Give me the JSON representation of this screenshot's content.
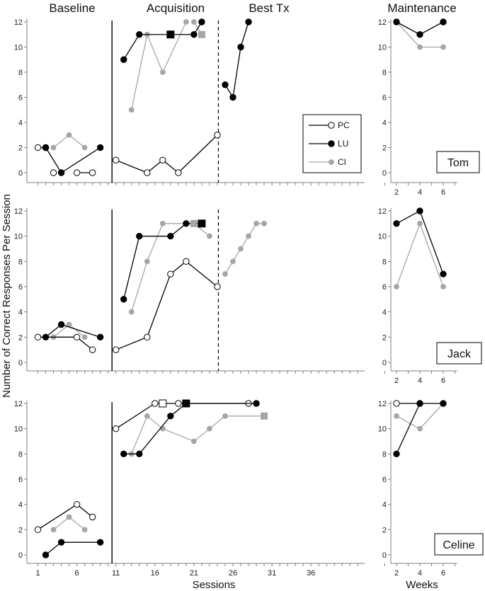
{
  "chart_data": {
    "type": "line",
    "phases": [
      "Baseline",
      "Acquisition",
      "Best Tx",
      "Maintenance"
    ],
    "xlabel": "Sessions",
    "maint_xlabel": "Weeks",
    "ylabel": "Number of Correct Responses Per Session",
    "session_ticks": [
      1,
      6,
      11,
      16,
      21,
      26,
      31,
      36
    ],
    "maint_ticks": [
      2,
      4,
      6
    ],
    "y_ticks": [
      0,
      2,
      4,
      6,
      8,
      10,
      12
    ],
    "ylim": [
      0,
      12
    ],
    "legend": [
      {
        "key": "PC",
        "label": "PC"
      },
      {
        "key": "LU",
        "label": "LU"
      },
      {
        "key": "CI",
        "label": "CI"
      }
    ],
    "colors": {
      "PC": "#ffffff",
      "LU": "#000000",
      "CI": "#a6a6a6"
    },
    "panels": [
      {
        "participant": "Tom",
        "baseline_end": 10,
        "besttx_start": 24.5,
        "series": [
          {
            "key": "PC",
            "segments": [
              [
                [
                  1,
                  2
                ],
                [
                  2,
                  2
                ]
              ],
              [
                [
                  3,
                  0
                ]
              ],
              [
                [
                  6,
                  0
                ],
                [
                  8,
                  0
                ]
              ],
              [
                [
                  11,
                  1
                ],
                [
                  15,
                  0
                ],
                [
                  17,
                  1
                ],
                [
                  19,
                  0
                ],
                [
                  24,
                  3
                ]
              ]
            ]
          },
          {
            "key": "LU",
            "segments": [
              [
                [
                  2,
                  2
                ],
                [
                  4,
                  0
                ],
                [
                  9,
                  2
                ]
              ],
              [
                [
                  12,
                  9
                ],
                [
                  14,
                  11
                ],
                [
                  18,
                  11
                ],
                [
                  21,
                  11
                ],
                [
                  22,
                  12
                ]
              ],
              [
                [
                  25,
                  7
                ],
                [
                  26,
                  6
                ],
                [
                  27,
                  10
                ],
                [
                  28,
                  12
                ]
              ]
            ]
          },
          {
            "key": "CI",
            "segments": [
              [
                [
                  3,
                  2
                ],
                [
                  5,
                  3
                ],
                [
                  7,
                  2
                ]
              ],
              [
                [
                  13,
                  5
                ],
                [
                  15,
                  11
                ],
                [
                  17,
                  8
                ],
                [
                  20,
                  12
                ]
              ],
              [
                [
                  21,
                  12
                ],
                [
                  22,
                  11
                ]
              ]
            ]
          }
        ],
        "squares": [
          {
            "key": "LU",
            "x": 18,
            "y": 11
          },
          {
            "key": "CI",
            "x": 22,
            "y": 11
          }
        ],
        "maintenance": [
          {
            "key": "CI",
            "points": [
              [
                2,
                12
              ],
              [
                4,
                10
              ],
              [
                6,
                10
              ]
            ]
          },
          {
            "key": "LU",
            "points": [
              [
                2,
                12
              ],
              [
                4,
                11
              ],
              [
                6,
                12
              ]
            ]
          }
        ]
      },
      {
        "participant": "Jack",
        "baseline_end": 10,
        "besttx_start": 24.5,
        "series": [
          {
            "key": "PC",
            "segments": [
              [
                [
                  1,
                  2
                ],
                [
                  6,
                  2
                ],
                [
                  8,
                  1
                ]
              ],
              [
                [
                  11,
                  1
                ],
                [
                  15,
                  2
                ],
                [
                  18,
                  7
                ],
                [
                  20,
                  8
                ],
                [
                  24,
                  6
                ]
              ]
            ]
          },
          {
            "key": "LU",
            "segments": [
              [
                [
                  2,
                  2
                ],
                [
                  4,
                  3
                ],
                [
                  9,
                  2
                ]
              ],
              [
                [
                  12,
                  5
                ],
                [
                  14,
                  10
                ],
                [
                  18,
                  10
                ],
                [
                  20,
                  11
                ],
                [
                  22,
                  11
                ]
              ]
            ]
          },
          {
            "key": "CI",
            "segments": [
              [
                [
                  3,
                  2
                ],
                [
                  5,
                  3
                ],
                [
                  7,
                  2
                ]
              ],
              [
                [
                  13,
                  4
                ],
                [
                  15,
                  8
                ],
                [
                  17,
                  11
                ],
                [
                  21,
                  11
                ],
                [
                  23,
                  10
                ]
              ],
              [
                [
                  25,
                  7
                ],
                [
                  26,
                  8
                ],
                [
                  27,
                  9
                ],
                [
                  28,
                  10
                ],
                [
                  29,
                  11
                ],
                [
                  30,
                  11
                ]
              ]
            ]
          }
        ],
        "squares": [
          {
            "key": "CI",
            "x": 21,
            "y": 11
          },
          {
            "key": "LU",
            "x": 22,
            "y": 11
          }
        ],
        "maintenance": [
          {
            "key": "CI",
            "points": [
              [
                2,
                6
              ],
              [
                4,
                11
              ],
              [
                6,
                6
              ]
            ]
          },
          {
            "key": "LU",
            "points": [
              [
                2,
                11
              ],
              [
                4,
                12
              ],
              [
                6,
                7
              ]
            ]
          }
        ]
      },
      {
        "participant": "Celine",
        "baseline_end": 10,
        "besttx_start": null,
        "series": [
          {
            "key": "PC",
            "segments": [
              [
                [
                  1,
                  2
                ],
                [
                  6,
                  4
                ],
                [
                  8,
                  3
                ]
              ],
              [
                [
                  11,
                  10
                ],
                [
                  16,
                  12
                ],
                [
                  17,
                  12
                ],
                [
                  19,
                  12
                ],
                [
                  28,
                  12
                ]
              ]
            ]
          },
          {
            "key": "LU",
            "segments": [
              [
                [
                  2,
                  0
                ],
                [
                  4,
                  1
                ],
                [
                  9,
                  1
                ]
              ],
              [
                [
                  12,
                  8
                ],
                [
                  14,
                  8
                ],
                [
                  18,
                  11
                ],
                [
                  20,
                  12
                ],
                [
                  29,
                  12
                ]
              ]
            ]
          },
          {
            "key": "CI",
            "segments": [
              [
                [
                  3,
                  2
                ],
                [
                  5,
                  3
                ],
                [
                  7,
                  2
                ]
              ],
              [
                [
                  13,
                  8
                ],
                [
                  15,
                  11
                ],
                [
                  17,
                  10
                ],
                [
                  21,
                  9
                ],
                [
                  23,
                  10
                ],
                [
                  25,
                  11
                ],
                [
                  30,
                  11
                ]
              ]
            ]
          }
        ],
        "squares": [
          {
            "key": "PC",
            "x": 17,
            "y": 12
          },
          {
            "key": "LU",
            "x": 20,
            "y": 12
          },
          {
            "key": "CI",
            "x": 30,
            "y": 11
          }
        ],
        "maintenance": [
          {
            "key": "CI",
            "points": [
              [
                2,
                11
              ],
              [
                4,
                10
              ],
              [
                6,
                12
              ]
            ]
          },
          {
            "key": "PC",
            "points": [
              [
                2,
                12
              ],
              [
                4,
                12
              ]
            ]
          },
          {
            "key": "LU",
            "points": [
              [
                2,
                8
              ],
              [
                4,
                12
              ],
              [
                6,
                12
              ]
            ]
          }
        ]
      }
    ]
  }
}
